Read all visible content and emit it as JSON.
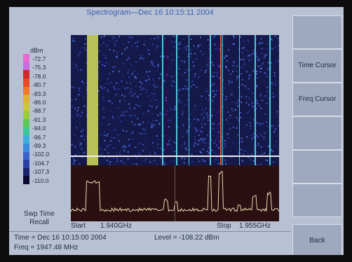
{
  "screen": {
    "title": "Spectrogram—Dec 16 10:15:11 2004"
  },
  "legend": {
    "unit": "dBm",
    "levels": [
      "-72.7",
      "-75.3",
      "-78.0",
      "-80.7",
      "-83.3",
      "-86.0",
      "-88.7",
      "-91.3",
      "-94.0",
      "-96.7",
      "-99.3",
      "-102.0",
      "-104.7",
      "-107.3",
      "-110.0"
    ],
    "colors": [
      "#e86ad0",
      "#c86ae0",
      "#d02a2a",
      "#e84a2a",
      "#f07a2a",
      "#e0b030",
      "#c8c83a",
      "#9ccc3a",
      "#5ec85a",
      "#3ec89a",
      "#3ab0d8",
      "#3a8ae0",
      "#3a62c8",
      "#2a3ea8",
      "#1a2270",
      "#0a0a30"
    ]
  },
  "softkeys": [
    {
      "label": ""
    },
    {
      "label": "Time Cursor"
    },
    {
      "label": "Freq Cursor"
    },
    {
      "label": ""
    },
    {
      "label": ""
    },
    {
      "label": ""
    },
    {
      "label": "Back"
    }
  ],
  "bottom_left": {
    "recall_label": "Swp Time Recall"
  },
  "frequency_axis": {
    "start_label": "Start",
    "start_value": "1.940GHz",
    "stop_label": "Stop",
    "stop_value": "1.955GHz"
  },
  "status": {
    "time": "Time = Dec 16 10:15:00 2004",
    "level": "Level = -108.22 dBm",
    "freq": "Freq = 1947.48 MHz"
  },
  "colors": {
    "screen_bg": "#b8c1d3",
    "title": "#3c5fae",
    "trace": "#e8d8b0",
    "cursor": "#f0f0f0"
  }
}
